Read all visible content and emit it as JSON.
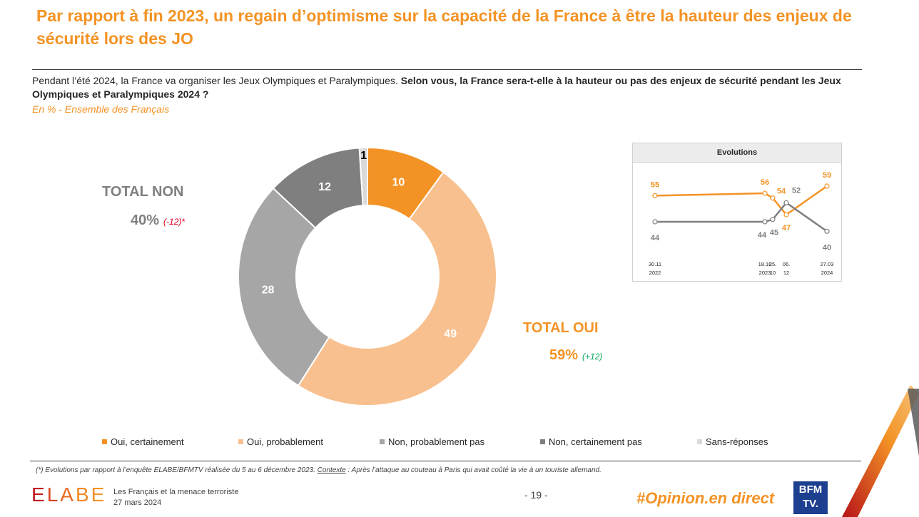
{
  "title": "Par rapport à fin 2023, un regain d’optimisme sur la capacité de la France à être la hauteur des enjeux de sécurité lors des JO",
  "question_intro": "Pendant l’été 2024, la France va organiser les Jeux Olympiques et Paralympiques. ",
  "question_bold": "Selon vous, la France sera-t-elle à la hauteur ou pas des enjeux de sécurité pendant les Jeux Olympiques et Paralympiques 2024 ?",
  "subtitle": "En % - Ensemble des Français",
  "totals": {
    "non_label": "TOTAL NON",
    "non_value": "40%",
    "non_delta": "(-12)*",
    "oui_label": "TOTAL OUI",
    "oui_value": "59%",
    "oui_delta": "(+12)"
  },
  "chart_data": [
    {
      "type": "pie",
      "variant": "donut",
      "categories": [
        "Oui, certainement",
        "Oui, probablement",
        "Non, probablement pas",
        "Non, certainement pas",
        "Sans-réponses"
      ],
      "values": [
        10,
        49,
        28,
        12,
        1
      ],
      "colors": [
        "#F39325",
        "#F8C08E",
        "#A6A6A6",
        "#7F7F7F",
        "#D9D9D9"
      ],
      "label_colors": [
        "#ffffff",
        "#ffffff",
        "#ffffff",
        "#ffffff",
        "#000000"
      ]
    },
    {
      "type": "line",
      "title": "Evolutions",
      "x": [
        "30.11 2022",
        "18.10 2023",
        "25. 10",
        "06. 12",
        "27.03 2024"
      ],
      "series": [
        {
          "name": "Total Oui",
          "color": "#F39325",
          "values": [
            55,
            56,
            54,
            47,
            59
          ]
        },
        {
          "name": "Total Non",
          "color": "#7F7F7F",
          "values": [
            44,
            44,
            45,
            52,
            40
          ]
        }
      ]
    }
  ],
  "evolution_axis": [
    {
      "top": "30.11",
      "bottom": "2022"
    },
    {
      "top": "18.10",
      "bottom": "2023"
    },
    {
      "top": "25.",
      "bottom": "10"
    },
    {
      "top": "06.",
      "bottom": "12"
    },
    {
      "top": "27.03",
      "bottom": "2024"
    }
  ],
  "legend": [
    {
      "label": "Oui, certainement",
      "color": "#F39325"
    },
    {
      "label": "Oui, probablement",
      "color": "#F8C08E"
    },
    {
      "label": "Non, probablement pas",
      "color": "#A6A6A6"
    },
    {
      "label": "Non, certainement pas",
      "color": "#7F7F7F"
    },
    {
      "label": "Sans-réponses",
      "color": "#D9D9D9"
    }
  ],
  "footnote_main": "(*) Evolutions par rapport à l’enquête ELABE/BFMTV réalisée du 5 au 6 décembre 2023. ",
  "footnote_ctx_label": "Contexte",
  "footnote_ctx_text": " : Après l’attaque au couteau à Paris qui avait coûté la vie à un touriste allemand.",
  "footer": {
    "logo": "ELABE",
    "report_title": "Les Français et la menace terroriste",
    "report_date": "27 mars 2024",
    "page": "- 19 -",
    "hashtag": "#Opinion.en direct",
    "partner_line1": "BFM",
    "partner_line2": "TV."
  }
}
